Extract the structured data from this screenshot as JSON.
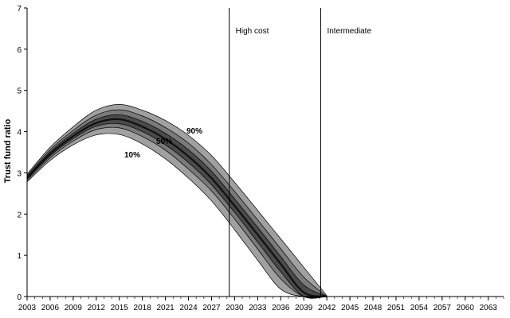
{
  "chart_data": {
    "type": "area",
    "title": "",
    "xlabel": "",
    "ylabel": "Trust fund ratio",
    "xlim": [
      2003,
      2065
    ],
    "ylim": [
      0,
      7
    ],
    "y_ticks": [
      0,
      1,
      2,
      3,
      4,
      5,
      6,
      7
    ],
    "x_ticks": [
      "2003",
      "2006",
      "2009",
      "2012",
      "2015",
      "2018",
      "2021",
      "2024",
      "2027",
      "2030",
      "2033",
      "2036",
      "2039",
      "2042",
      "2045",
      "2048",
      "2051",
      "2054",
      "2057",
      "2060",
      "2063"
    ],
    "grid": false,
    "percentile_labels": {
      "p90": "90%",
      "p50": "50%",
      "p10": "10%"
    },
    "vlines": [
      {
        "x": 2029.3,
        "label": "High cost"
      },
      {
        "x": 2041.2,
        "label": "Intermediate"
      }
    ],
    "x": [
      2003,
      2006,
      2009,
      2012,
      2015,
      2018,
      2021,
      2024,
      2027,
      2030,
      2033,
      2036,
      2039,
      2042
    ],
    "series": [
      {
        "name": "p2.5",
        "values": [
          2.78,
          3.3,
          3.68,
          3.92,
          3.93,
          3.7,
          3.34,
          2.87,
          2.32,
          1.62,
          0.88,
          0.18,
          0.0,
          0.0
        ]
      },
      {
        "name": "p10",
        "values": [
          2.82,
          3.36,
          3.77,
          4.05,
          4.09,
          3.88,
          3.55,
          3.09,
          2.56,
          1.88,
          1.15,
          0.43,
          0.0,
          0.0
        ]
      },
      {
        "name": "p25",
        "values": [
          2.85,
          3.41,
          3.83,
          4.13,
          4.19,
          4.0,
          3.68,
          3.25,
          2.71,
          2.04,
          1.32,
          0.6,
          0.0,
          0.0
        ]
      },
      {
        "name": "p50",
        "values": [
          2.88,
          3.46,
          3.89,
          4.21,
          4.3,
          4.12,
          3.82,
          3.4,
          2.87,
          2.2,
          1.5,
          0.79,
          0.1,
          0.0
        ]
      },
      {
        "name": "p75",
        "values": [
          2.91,
          3.51,
          3.96,
          4.3,
          4.41,
          4.25,
          3.96,
          3.56,
          3.04,
          2.37,
          1.68,
          0.97,
          0.28,
          0.0
        ]
      },
      {
        "name": "p90",
        "values": [
          2.94,
          3.56,
          4.03,
          4.4,
          4.53,
          4.38,
          4.1,
          3.72,
          3.2,
          2.55,
          1.86,
          1.16,
          0.47,
          0.0
        ]
      },
      {
        "name": "p97.5",
        "values": [
          2.97,
          3.62,
          4.12,
          4.52,
          4.66,
          4.52,
          4.27,
          3.91,
          3.42,
          2.77,
          2.09,
          1.4,
          0.71,
          0.02
        ]
      }
    ],
    "bands": [
      {
        "lower": "p2.5",
        "upper": "p97.5",
        "color": "#a0a0a0"
      },
      {
        "lower": "p10",
        "upper": "p90",
        "color": "#7a7a7a"
      },
      {
        "lower": "p25",
        "upper": "p75",
        "color": "#4a4a4a"
      }
    ],
    "median_color": "#101010",
    "line_color": "#000000"
  }
}
